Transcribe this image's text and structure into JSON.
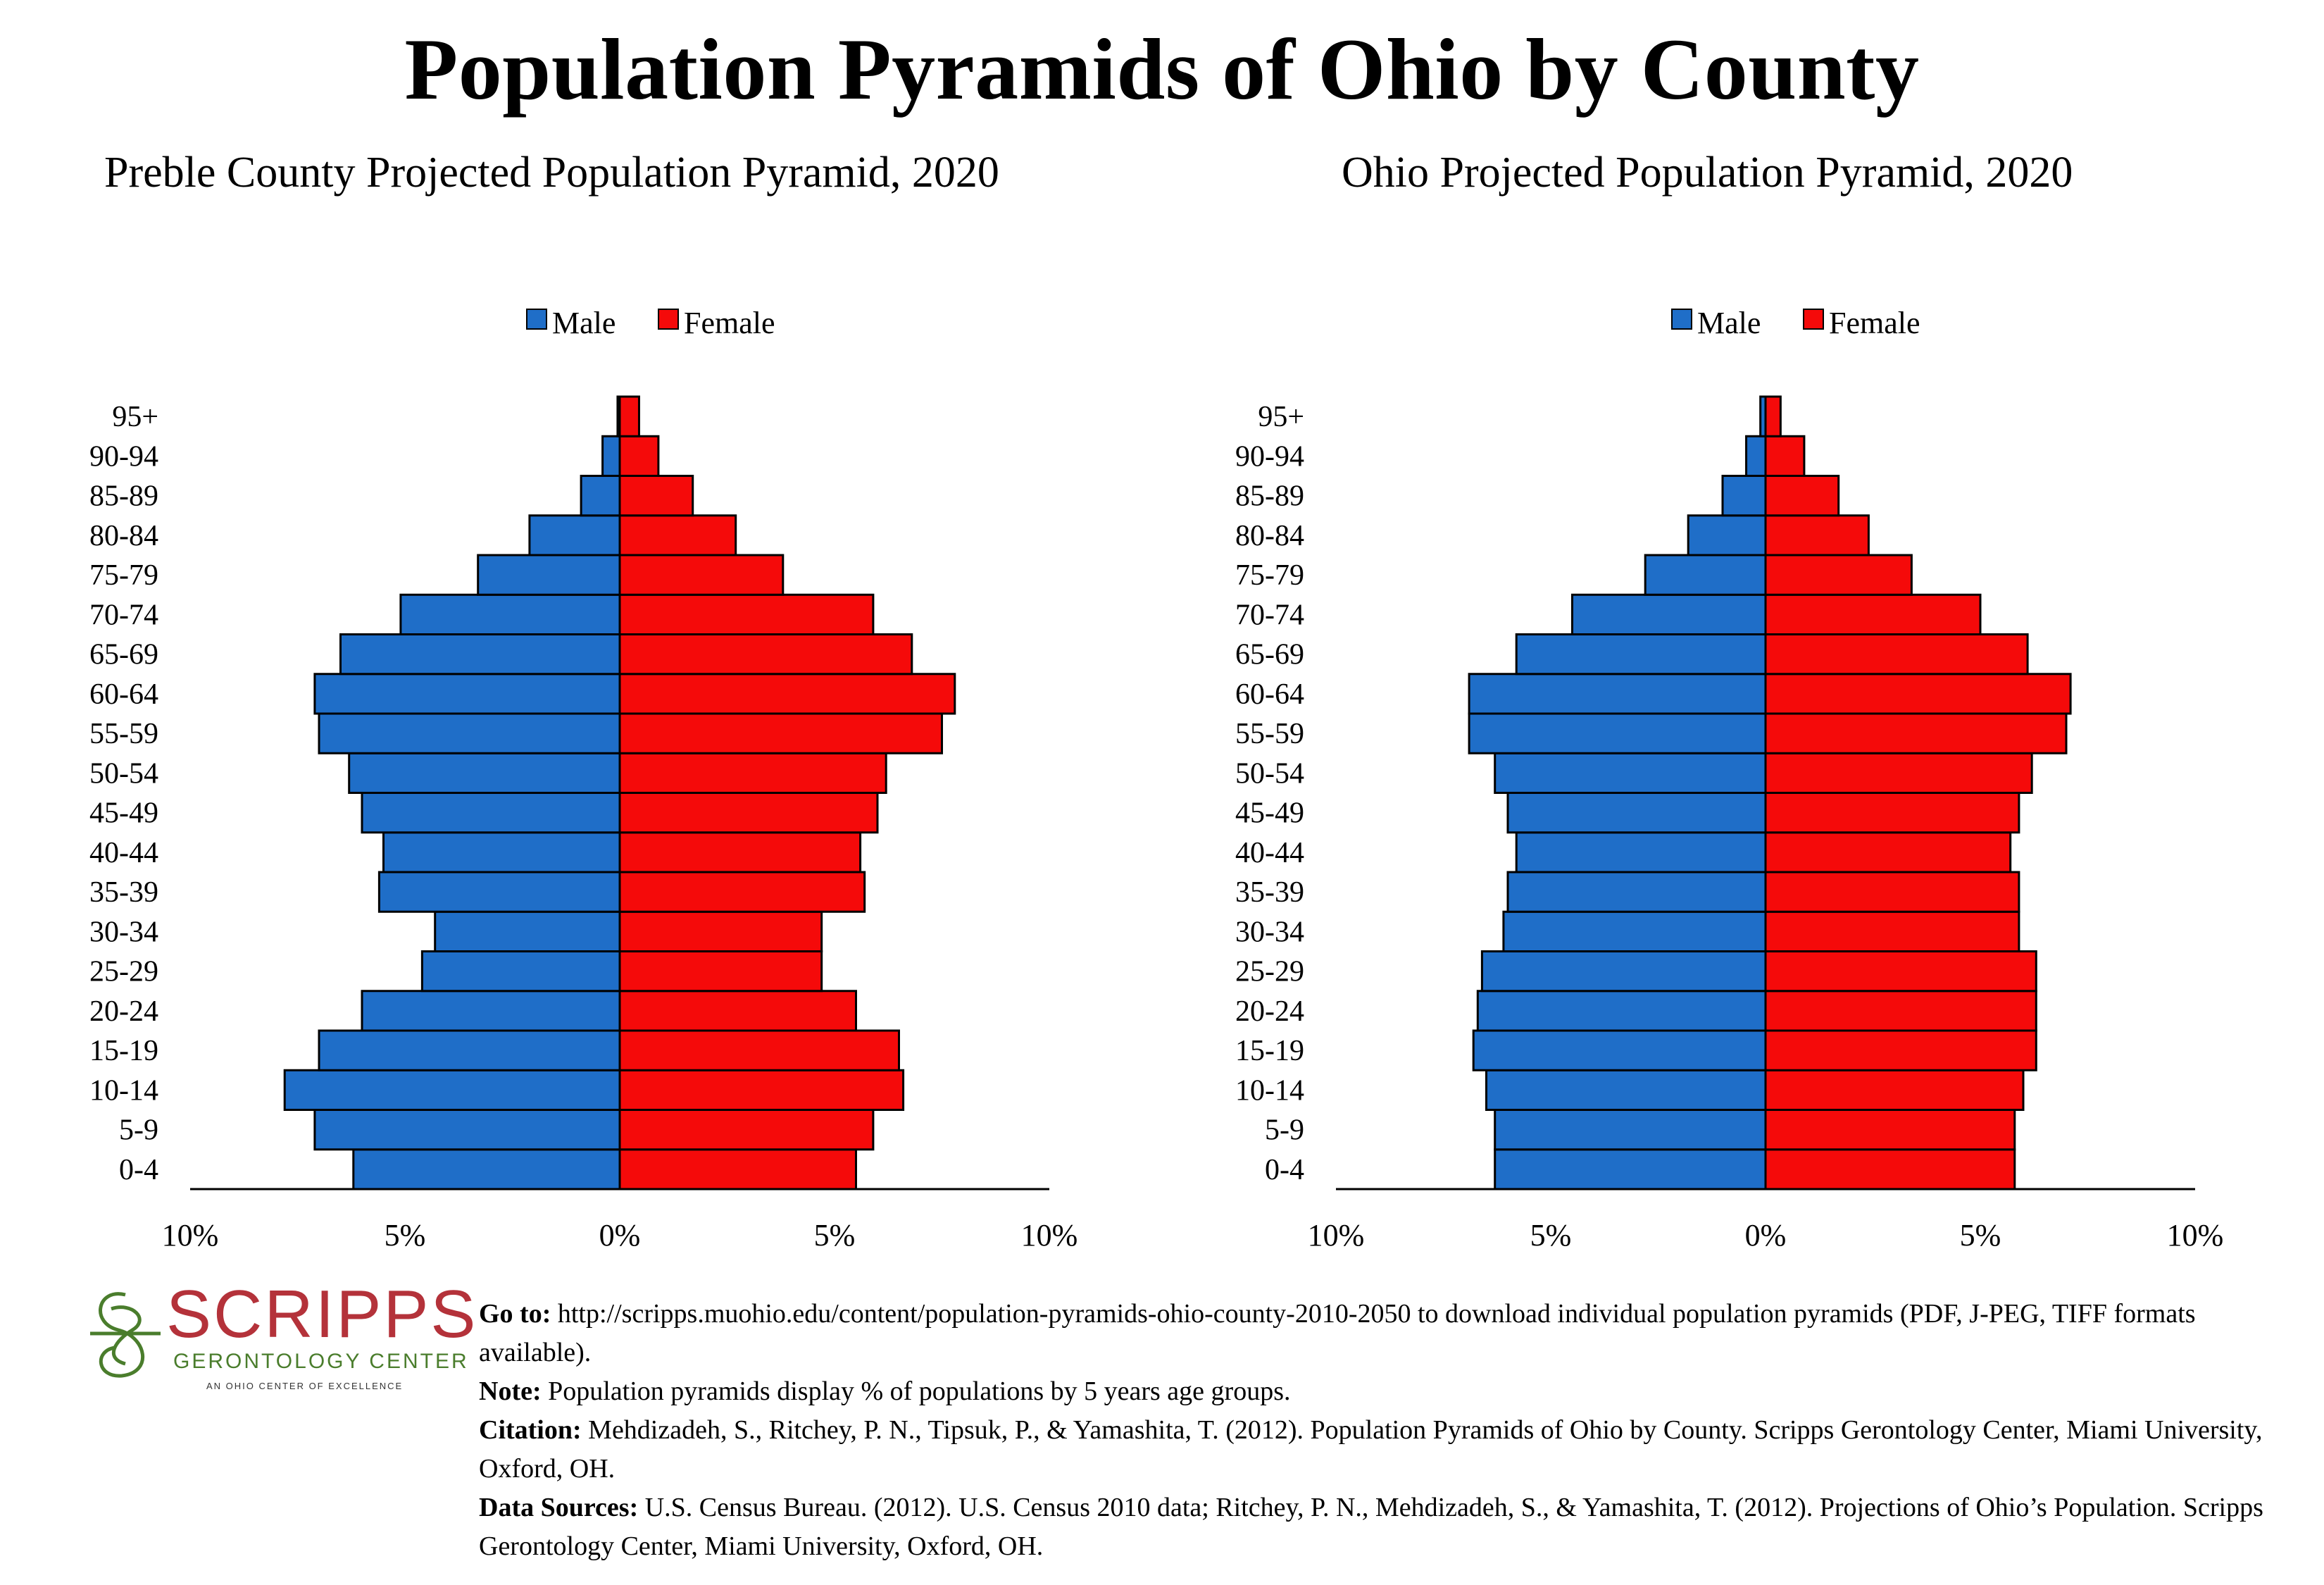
{
  "title": "Population Pyramids of Ohio by County",
  "colors": {
    "male": "#1f6ec8",
    "female": "#f50a0a",
    "logo_red": "#b4323a",
    "logo_green": "#4a7d2c"
  },
  "chart_data": [
    {
      "type": "bar",
      "orientation": "horizontal-pyramid",
      "title": "Preble County Projected Population Pyramid, 2020",
      "legend": [
        "Male",
        "Female"
      ],
      "legend_position": "top",
      "categories": [
        "0-4",
        "5-9",
        "10-14",
        "15-19",
        "20-24",
        "25-29",
        "30-34",
        "35-39",
        "40-44",
        "45-49",
        "50-54",
        "55-59",
        "60-64",
        "65-69",
        "70-74",
        "75-79",
        "80-84",
        "85-89",
        "90-94",
        "95+"
      ],
      "series": [
        {
          "name": "Male",
          "values": [
            6.2,
            7.1,
            7.8,
            7.0,
            6.0,
            4.6,
            4.3,
            5.6,
            5.5,
            6.0,
            6.3,
            7.0,
            7.1,
            6.5,
            5.1,
            3.3,
            2.1,
            0.9,
            0.4,
            0.05
          ]
        },
        {
          "name": "Female",
          "values": [
            5.5,
            5.9,
            6.6,
            6.5,
            5.5,
            4.7,
            4.7,
            5.7,
            5.6,
            6.0,
            6.2,
            7.5,
            7.8,
            6.8,
            5.9,
            3.8,
            2.7,
            1.7,
            0.9,
            0.45
          ]
        }
      ],
      "xlim": [
        -10,
        10
      ],
      "tick_labels": [
        "10%",
        "5%",
        "0%",
        "5%",
        "10%"
      ],
      "grid": false
    },
    {
      "type": "bar",
      "orientation": "horizontal-pyramid",
      "title": "Ohio Projected Population Pyramid, 2020",
      "legend": [
        "Male",
        "Female"
      ],
      "legend_position": "top",
      "categories": [
        "0-4",
        "5-9",
        "10-14",
        "15-19",
        "20-24",
        "25-29",
        "30-34",
        "35-39",
        "40-44",
        "45-49",
        "50-54",
        "55-59",
        "60-64",
        "65-69",
        "70-74",
        "75-79",
        "80-84",
        "85-89",
        "90-94",
        "95+"
      ],
      "series": [
        {
          "name": "Male",
          "values": [
            6.3,
            6.3,
            6.5,
            6.8,
            6.7,
            6.6,
            6.1,
            6.0,
            5.8,
            6.0,
            6.3,
            6.9,
            6.9,
            5.8,
            4.5,
            2.8,
            1.8,
            1.0,
            0.45,
            0.12
          ]
        },
        {
          "name": "Female",
          "values": [
            5.8,
            5.8,
            6.0,
            6.3,
            6.3,
            6.3,
            5.9,
            5.9,
            5.7,
            5.9,
            6.2,
            7.0,
            7.1,
            6.1,
            5.0,
            3.4,
            2.4,
            1.7,
            0.9,
            0.35
          ]
        }
      ],
      "xlim": [
        -10,
        10
      ],
      "tick_labels": [
        "10%",
        "5%",
        "0%",
        "5%",
        "10%"
      ],
      "grid": false
    }
  ],
  "logo": {
    "word": "SCRIPPS",
    "subline": "GERONTOLOGY CENTER",
    "tagline": "AN OHIO CENTER OF EXCELLENCE"
  },
  "notes": {
    "goto_label": "Go to:",
    "goto_text": " http://scripps.muohio.edu/content/population-pyramids-ohio-county-2010-2050 to download individual population pyramids (PDF, J-PEG, TIFF formats available).",
    "note_label": "Note:",
    "note_text": " Population pyramids display % of populations by 5 years age groups.",
    "citation_label": "Citation:",
    "citation_text": " Mehdizadeh, S., Ritchey, P. N., Tipsuk, P., & Yamashita, T. (2012). Population Pyramids of Ohio by County. Scripps Gerontology Center, Miami University, Oxford, OH.",
    "sources_label": "Data Sources:",
    "sources_text": " U.S. Census Bureau. (2012). U.S. Census 2010 data; Ritchey, P. N., Mehdizadeh, S., & Yamashita, T. (2012). Projections of Ohio’s Population. Scripps Gerontology Center, Miami University, Oxford, OH."
  }
}
